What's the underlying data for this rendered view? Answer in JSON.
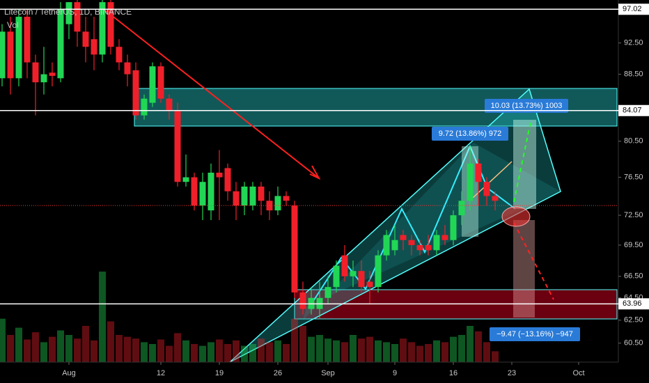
{
  "chart_data": {
    "type": "candlestick",
    "title": "Litecoin / TetherUS, 1D, BINANCE",
    "subtitle": "Vol",
    "log_scale": true,
    "up_color": "#22d655",
    "down_color": "#f0202a",
    "ylim": [
      58.9,
      98.3
    ],
    "yticks": [
      {
        "value": 92.5,
        "label": "92.50"
      },
      {
        "value": 88.5,
        "label": "88.50"
      },
      {
        "value": 80.5,
        "label": "80.50"
      },
      {
        "value": 76.5,
        "label": "76.50"
      },
      {
        "value": 72.5,
        "label": "72.50"
      },
      {
        "value": 69.5,
        "label": "69.50"
      },
      {
        "value": 66.5,
        "label": "66.50"
      },
      {
        "value": 64.5,
        "label": "64.50"
      },
      {
        "value": 62.5,
        "label": "62.50"
      },
      {
        "value": 60.5,
        "label": "60.50"
      }
    ],
    "price_lines": [
      97.02,
      84.07,
      63.96
    ],
    "last_price": 73.5,
    "xlim": [
      -0.25,
      73.75
    ],
    "xticks": [
      {
        "value": 8,
        "label": "Aug"
      },
      {
        "value": 19,
        "label": "12"
      },
      {
        "value": 26,
        "label": "19"
      },
      {
        "value": 33,
        "label": "26"
      },
      {
        "value": 39,
        "label": "Sep"
      },
      {
        "value": 47,
        "label": "9"
      },
      {
        "value": 54,
        "label": "16"
      },
      {
        "value": 61,
        "label": "23"
      },
      {
        "value": 69,
        "label": "Oct"
      }
    ],
    "open": [
      88,
      94,
      88,
      96,
      90,
      87.5,
      88.7,
      88,
      95,
      98,
      94,
      93,
      91,
      98,
      92,
      90,
      89,
      83.5,
      85,
      89.5,
      85.5,
      84,
      76,
      76.5,
      73.5,
      73,
      77,
      77.5,
      75,
      73.5,
      73.5,
      75.5,
      74,
      73,
      74.5,
      73.5,
      65,
      63.5,
      63.5,
      64.5,
      65.5,
      68.5,
      66.5,
      67,
      66,
      65.5,
      68.5,
      69,
      70.5,
      70,
      69.5,
      69.5,
      69,
      70.5,
      70,
      72.5,
      74,
      78,
      76,
      74.5
    ],
    "high": [
      95,
      96,
      97,
      97,
      91,
      92,
      90,
      98,
      98,
      98.3,
      96,
      96,
      98.3,
      98.3,
      93,
      91,
      90,
      86,
      90,
      90,
      86,
      85,
      79,
      77,
      77,
      78,
      79.5,
      78,
      76,
      76,
      76,
      76,
      75,
      75.5,
      75,
      74,
      66,
      65.5,
      66,
      66.5,
      68,
      69.5,
      68,
      68,
      67,
      69,
      71,
      71.5,
      71,
      70.5,
      70,
      70.5,
      71,
      71.5,
      73,
      75,
      80,
      78.5,
      76.5,
      75
    ],
    "low": [
      87,
      86,
      87,
      88,
      83.5,
      86,
      87,
      87.5,
      93,
      92,
      90,
      89,
      90,
      91,
      89,
      87,
      83,
      83,
      84.5,
      85,
      83,
      75.5,
      75.5,
      73,
      72,
      72,
      72,
      74,
      72,
      72.5,
      73,
      72.5,
      72,
      72.5,
      73.5,
      64.5,
      63,
      63,
      62.7,
      64,
      65,
      66,
      65.5,
      65,
      64,
      65,
      68,
      68.5,
      69,
      68.5,
      68.5,
      68.5,
      68.5,
      69.5,
      69.5,
      71.5,
      73,
      73.5,
      73.5,
      73
    ],
    "close": [
      94,
      88,
      96,
      90,
      87.5,
      88.5,
      88.3,
      97,
      98,
      94,
      92,
      91,
      98,
      92,
      90,
      88.5,
      83.5,
      85.5,
      89.5,
      85.5,
      84,
      76,
      76.5,
      73.5,
      76,
      77,
      76.5,
      75,
      73.5,
      75.5,
      75.5,
      74,
      73,
      74.5,
      74,
      65,
      63.5,
      64.5,
      64.5,
      65.5,
      67.5,
      66.5,
      67,
      65.5,
      65.5,
      68.5,
      70.5,
      70,
      70,
      69.5,
      69,
      69,
      70.5,
      70,
      72.5,
      74,
      78,
      76,
      74.5,
      74
    ],
    "volume": [
      48,
      30,
      38,
      25,
      33,
      22,
      28,
      35,
      30,
      26,
      40,
      24,
      100,
      45,
      30,
      28,
      26,
      22,
      20,
      25,
      18,
      32,
      24,
      20,
      18,
      22,
      25,
      20,
      24,
      18,
      20,
      26,
      22,
      24,
      20,
      48,
      40,
      28,
      30,
      26,
      24,
      22,
      30,
      26,
      28,
      24,
      22,
      20,
      26,
      22,
      18,
      20,
      24,
      22,
      28,
      30,
      40,
      34,
      22,
      12
    ],
    "volume_lim": [
      0,
      100
    ],
    "annotations": [
      "10.03 (13.73%) 1003",
      "9.72 (13.86%) 972",
      "−9.47 (−13.16%) −947"
    ]
  }
}
